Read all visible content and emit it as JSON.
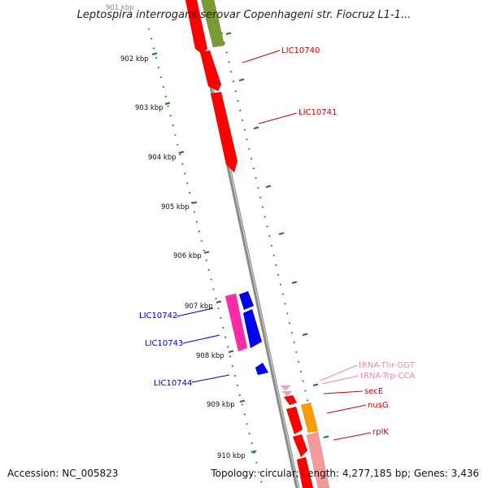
{
  "title": "Leptospira interrogans serovar Copenhageni str. Fiocruz L1-1...",
  "footer": {
    "accession": "Accession: NC_005823",
    "summary": "Topology: circular; Length: 4,277,185 bp; Genes: 3,436"
  },
  "scale": {
    "unit": "kbp",
    "labels": [
      "901 kbp",
      "902 kbp",
      "903 kbp",
      "904 kbp",
      "905 kbp",
      "906 kbp",
      "907 kbp",
      "908 kbp",
      "909 kbp",
      "910 kbp"
    ]
  },
  "colors": {
    "backbone": "#8a8a8a",
    "tick": "#1a7a1a",
    "gene_red": "#ff0000",
    "gene_olive": "#7a9a35",
    "gene_blue": "#0000ee",
    "gene_pink": "#ff2aa8",
    "gene_light_pink": "#f4a0b4",
    "gene_orange": "#ff9a00",
    "gene_salmon": "#f49a9a",
    "label_red": "#cc0000",
    "label_blue": "#0000cc",
    "label_pink": "#e88aa8"
  },
  "gene_labels": [
    {
      "id": "lic10740",
      "text": "LIC10740",
      "color": "red"
    },
    {
      "id": "lic10741",
      "text": "LIC10741",
      "color": "red"
    },
    {
      "id": "lic10742",
      "text": "LIC10742",
      "color": "blue"
    },
    {
      "id": "lic10743",
      "text": "LIC10743",
      "color": "blue"
    },
    {
      "id": "lic10744",
      "text": "LIC10744",
      "color": "blue"
    },
    {
      "id": "trna-thr",
      "text": "tRNA-Thr-GGT",
      "color": "pink"
    },
    {
      "id": "trna-trp",
      "text": "tRNA-Trp-CCA",
      "color": "pink"
    },
    {
      "id": "sece",
      "text": "secE",
      "color": "red"
    },
    {
      "id": "nusg",
      "text": "nusG",
      "color": "red"
    },
    {
      "id": "rplk",
      "text": "rplK",
      "color": "red"
    }
  ]
}
